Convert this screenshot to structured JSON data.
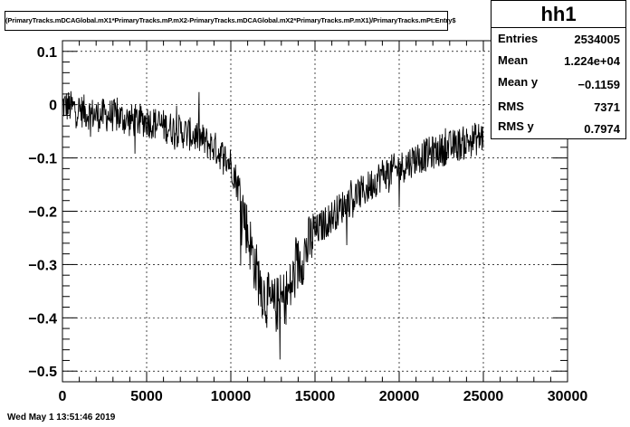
{
  "title": "(PrimaryTracks.mDCAGlobal.mX1*PrimaryTracks.mP.mX2-PrimaryTracks.mDCAGlobal.mX2*PrimaryTracks.mP.mX1)/PrimaryTracks.mPt:Entry$",
  "stats": {
    "name": "hh1",
    "rows": [
      {
        "label": "Entries",
        "value": "2534005"
      },
      {
        "label": "Mean",
        "value": "1.224e+04"
      },
      {
        "label": "Mean y",
        "value": "−0.1159"
      },
      {
        "label": "RMS",
        "value": "7371"
      },
      {
        "label": "RMS y",
        "value": "0.7974"
      }
    ]
  },
  "datestamp": "Wed May  1 13:51:46 2019",
  "chart_data": {
    "type": "line",
    "title": "(PrimaryTracks.mDCAGlobal.mX1*PrimaryTracks.mP.mX2-PrimaryTracks.mDCAGlobal.mX2*PrimaryTracks.mP.mX1)/PrimaryTracks.mPt:Entry$",
    "xlabel": "",
    "ylabel": "",
    "xlim": [
      0,
      30000
    ],
    "ylim": [
      -0.52,
      0.12
    ],
    "xticks": [
      "0",
      "5000",
      "10000",
      "15000",
      "20000",
      "25000",
      "30000"
    ],
    "yticks": [
      "−0.5",
      "−0.4",
      "−0.3",
      "−0.2",
      "−0.1",
      "0",
      "0.1"
    ],
    "grid": true,
    "series": [
      {
        "name": "",
        "x": [
          0,
          1000,
          2000,
          3000,
          4000,
          5000,
          6000,
          7000,
          8000,
          9000,
          10000,
          10500,
          11000,
          11500,
          12000,
          12500,
          13000,
          13500,
          14000,
          14500,
          15000,
          16000,
          17000,
          18000,
          19000,
          20000,
          21000,
          22000,
          23000,
          24000,
          25000
        ],
        "y": [
          0.0,
          -0.01,
          -0.02,
          -0.02,
          -0.03,
          -0.03,
          -0.04,
          -0.05,
          -0.06,
          -0.08,
          -0.11,
          -0.16,
          -0.24,
          -0.31,
          -0.36,
          -0.38,
          -0.37,
          -0.35,
          -0.3,
          -0.27,
          -0.24,
          -0.21,
          -0.18,
          -0.16,
          -0.13,
          -0.12,
          -0.1,
          -0.09,
          -0.08,
          -0.07,
          -0.06
        ]
      }
    ]
  }
}
